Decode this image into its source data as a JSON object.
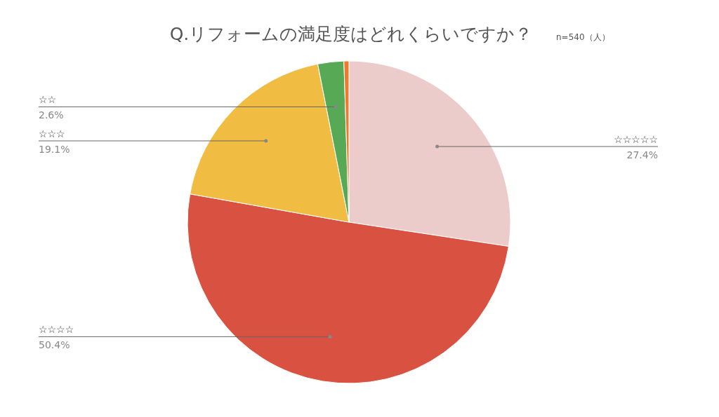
{
  "chart_data": {
    "type": "pie",
    "title": "Q.リフォームの満足度はどれくらいですか？",
    "subtitle": "n=540（人）",
    "categories": [
      "☆☆☆☆☆",
      "☆☆☆☆",
      "☆☆☆",
      "☆☆",
      null
    ],
    "values": [
      27.4,
      50.4,
      19.1,
      2.6,
      0.5
    ],
    "colors": [
      "#ecccca",
      "#d95140",
      "#f0bd42",
      "#57a955",
      "#ee7a2d"
    ],
    "value_labels": [
      "27.4%",
      "50.4%",
      "19.1%",
      "2.6%",
      null
    ]
  }
}
